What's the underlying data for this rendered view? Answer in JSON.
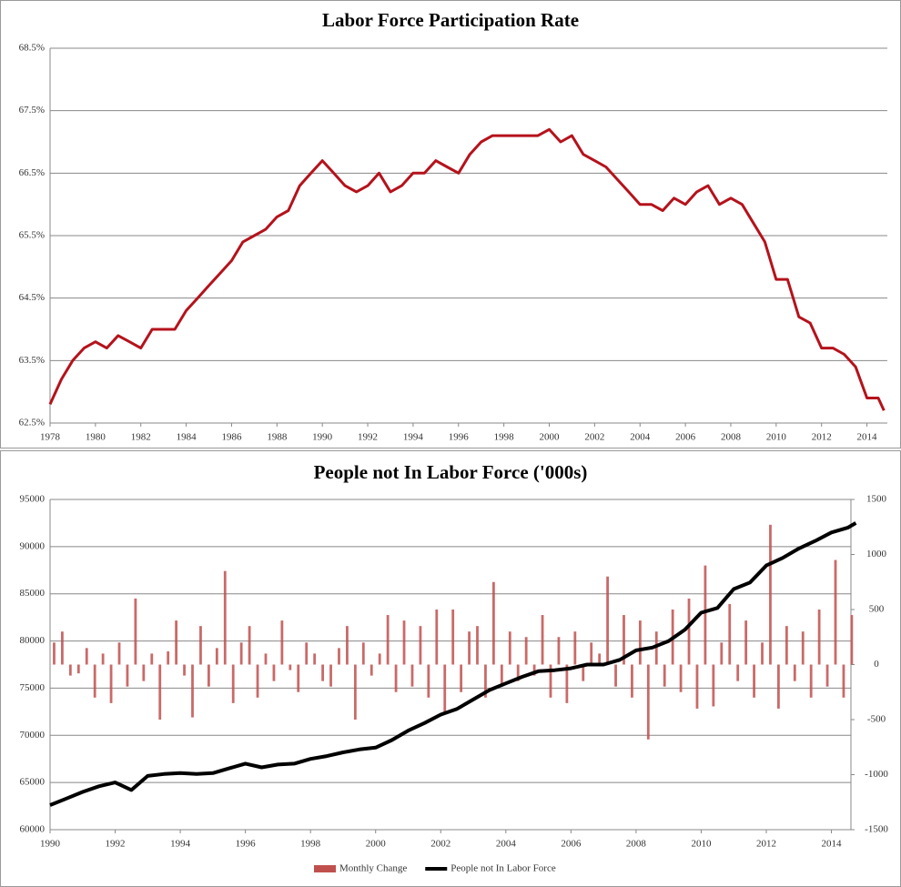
{
  "chart_data": [
    {
      "type": "line",
      "title": "Labor Force Participation Rate",
      "xlim": [
        1978,
        2014.9
      ],
      "xticks": [
        1978,
        1980,
        1982,
        1984,
        1986,
        1988,
        1990,
        1992,
        1994,
        1996,
        1998,
        2000,
        2002,
        2004,
        2006,
        2008,
        2010,
        2012,
        2014
      ],
      "ylim": [
        62.5,
        68.5
      ],
      "yticks": [
        {
          "value": 62.5,
          "label": "62.5%"
        },
        {
          "value": 63.5,
          "label": "63.5%"
        },
        {
          "value": 64.5,
          "label": "64.5%"
        },
        {
          "value": 65.5,
          "label": "65.5%"
        },
        {
          "value": 66.5,
          "label": "66.5%"
        },
        {
          "value": 67.5,
          "label": "67.5%"
        },
        {
          "value": 68.5,
          "label": "68.5%"
        }
      ],
      "grid": true,
      "series": [
        {
          "type": "line",
          "color": "#b5121b",
          "x": [
            1978.0,
            1978.5,
            1979.0,
            1979.5,
            1980.0,
            1980.5,
            1981.0,
            1981.5,
            1982.0,
            1982.5,
            1983.0,
            1983.5,
            1984.0,
            1984.5,
            1985.0,
            1985.5,
            1986.0,
            1986.5,
            1987.0,
            1987.5,
            1988.0,
            1988.5,
            1989.0,
            1989.5,
            1990.0,
            1990.5,
            1991.0,
            1991.5,
            1992.0,
            1992.5,
            1993.0,
            1993.5,
            1994.0,
            1994.5,
            1995.0,
            1995.5,
            1996.0,
            1996.5,
            1997.0,
            1997.5,
            1998.0,
            1998.5,
            1999.0,
            1999.5,
            2000.0,
            2000.5,
            2001.0,
            2001.5,
            2002.0,
            2002.5,
            2003.0,
            2003.5,
            2004.0,
            2004.5,
            2005.0,
            2005.5,
            2006.0,
            2006.5,
            2007.0,
            2007.5,
            2008.0,
            2008.5,
            2009.0,
            2009.5,
            2010.0,
            2010.5,
            2011.0,
            2011.5,
            2012.0,
            2012.5,
            2013.0,
            2013.5,
            2014.0,
            2014.5,
            2014.75
          ],
          "values": [
            62.8,
            63.2,
            63.5,
            63.7,
            63.8,
            63.7,
            63.9,
            63.8,
            63.7,
            64.0,
            64.0,
            64.0,
            64.3,
            64.5,
            64.7,
            64.9,
            65.1,
            65.4,
            65.5,
            65.6,
            65.8,
            65.9,
            66.3,
            66.5,
            66.7,
            66.5,
            66.3,
            66.2,
            66.3,
            66.5,
            66.2,
            66.3,
            66.5,
            66.5,
            66.7,
            66.6,
            66.5,
            66.8,
            67.0,
            67.1,
            67.1,
            67.1,
            67.1,
            67.1,
            67.2,
            67.0,
            67.1,
            66.8,
            66.7,
            66.6,
            66.4,
            66.2,
            66.0,
            66.0,
            65.9,
            66.1,
            66.0,
            66.2,
            66.3,
            66.0,
            66.1,
            66.0,
            65.7,
            65.4,
            64.8,
            64.8,
            64.2,
            64.1,
            63.7,
            63.7,
            63.6,
            63.4,
            62.9,
            62.9,
            62.7
          ]
        }
      ]
    },
    {
      "type": "combo",
      "title": "People not In Labor Force ('000s)",
      "xlim": [
        1990,
        2014.6
      ],
      "xticks": [
        1990,
        1992,
        1994,
        1996,
        1998,
        2000,
        2002,
        2004,
        2006,
        2008,
        2010,
        2012,
        2014
      ],
      "ylim": [
        60000,
        95000
      ],
      "yticks": [
        60000,
        65000,
        70000,
        75000,
        80000,
        85000,
        90000,
        95000
      ],
      "y2lim": [
        -1500,
        1500
      ],
      "y2ticks": [
        -1500,
        -1000,
        -500,
        0,
        500,
        1000,
        1500
      ],
      "grid": true,
      "legend": "bottom",
      "series": [
        {
          "type": "bar",
          "name": "Monthly Change",
          "color": "#c0504d",
          "axis": "y2",
          "x": [
            1990.125,
            1990.375,
            1990.625,
            1990.875,
            1991.125,
            1991.375,
            1991.625,
            1991.875,
            1992.125,
            1992.375,
            1992.625,
            1992.875,
            1993.125,
            1993.375,
            1993.625,
            1993.875,
            1994.125,
            1994.375,
            1994.625,
            1994.875,
            1995.125,
            1995.375,
            1995.625,
            1995.875,
            1996.125,
            1996.375,
            1996.625,
            1996.875,
            1997.125,
            1997.375,
            1997.625,
            1997.875,
            1998.125,
            1998.375,
            1998.625,
            1998.875,
            1999.125,
            1999.375,
            1999.625,
            1999.875,
            2000.125,
            2000.375,
            2000.625,
            2000.875,
            2001.125,
            2001.375,
            2001.625,
            2001.875,
            2002.125,
            2002.375,
            2002.625,
            2002.875,
            2003.125,
            2003.375,
            2003.625,
            2003.875,
            2004.125,
            2004.375,
            2004.625,
            2004.875,
            2005.125,
            2005.375,
            2005.625,
            2005.875,
            2006.125,
            2006.375,
            2006.625,
            2006.875,
            2007.125,
            2007.375,
            2007.625,
            2007.875,
            2008.125,
            2008.375,
            2008.625,
            2008.875,
            2009.125,
            2009.375,
            2009.625,
            2009.875,
            2010.125,
            2010.375,
            2010.625,
            2010.875,
            2011.125,
            2011.375,
            2011.625,
            2011.875,
            2012.125,
            2012.375,
            2012.625,
            2012.875,
            2013.125,
            2013.375,
            2013.625,
            2013.875,
            2014.125,
            2014.375,
            2014.625
          ],
          "values": [
            200,
            300,
            -100,
            -80,
            150,
            -300,
            100,
            -350,
            200,
            -200,
            600,
            -150,
            100,
            -500,
            120,
            400,
            -100,
            -480,
            350,
            -200,
            150,
            850,
            -350,
            200,
            350,
            -300,
            100,
            -150,
            400,
            -50,
            -250,
            200,
            100,
            -150,
            -200,
            150,
            350,
            -500,
            200,
            -100,
            100,
            450,
            -250,
            400,
            -200,
            350,
            -300,
            500,
            -450,
            500,
            -250,
            300,
            350,
            -300,
            750,
            -200,
            300,
            -150,
            250,
            -100,
            450,
            -300,
            250,
            -350,
            300,
            -150,
            200,
            100,
            800,
            -200,
            450,
            -300,
            400,
            -680,
            300,
            -200,
            500,
            -250,
            600,
            -400,
            900,
            -380,
            200,
            550,
            -150,
            400,
            -300,
            200,
            1270,
            -400,
            350,
            -150,
            300,
            -300,
            500,
            -200,
            950,
            -300,
            450
          ]
        },
        {
          "type": "line",
          "name": "People not In Labor Force",
          "color": "#000000",
          "x": [
            1990.0,
            1990.5,
            1991.0,
            1991.5,
            1992.0,
            1992.5,
            1993.0,
            1993.5,
            1994.0,
            1994.5,
            1995.0,
            1995.5,
            1996.0,
            1996.5,
            1997.0,
            1997.5,
            1998.0,
            1998.5,
            1999.0,
            1999.5,
            2000.0,
            2000.5,
            2001.0,
            2001.5,
            2002.0,
            2002.5,
            2003.0,
            2003.5,
            2004.0,
            2004.5,
            2005.0,
            2005.5,
            2006.0,
            2006.5,
            2007.0,
            2007.5,
            2008.0,
            2008.5,
            2009.0,
            2009.5,
            2010.0,
            2010.5,
            2011.0,
            2011.5,
            2012.0,
            2012.5,
            2013.0,
            2013.5,
            2014.0,
            2014.5,
            2014.75
          ],
          "values": [
            62600,
            63300,
            64000,
            64600,
            65000,
            64200,
            65700,
            65900,
            66000,
            65900,
            66000,
            66500,
            67000,
            66600,
            66900,
            67000,
            67500,
            67800,
            68200,
            68500,
            68700,
            69500,
            70500,
            71300,
            72200,
            72800,
            73800,
            74800,
            75500,
            76200,
            76800,
            76900,
            77100,
            77500,
            77500,
            78000,
            79000,
            79300,
            80000,
            81200,
            83000,
            83500,
            85500,
            86200,
            88000,
            88800,
            89800,
            90600,
            91500,
            92000,
            92500
          ]
        }
      ]
    }
  ]
}
